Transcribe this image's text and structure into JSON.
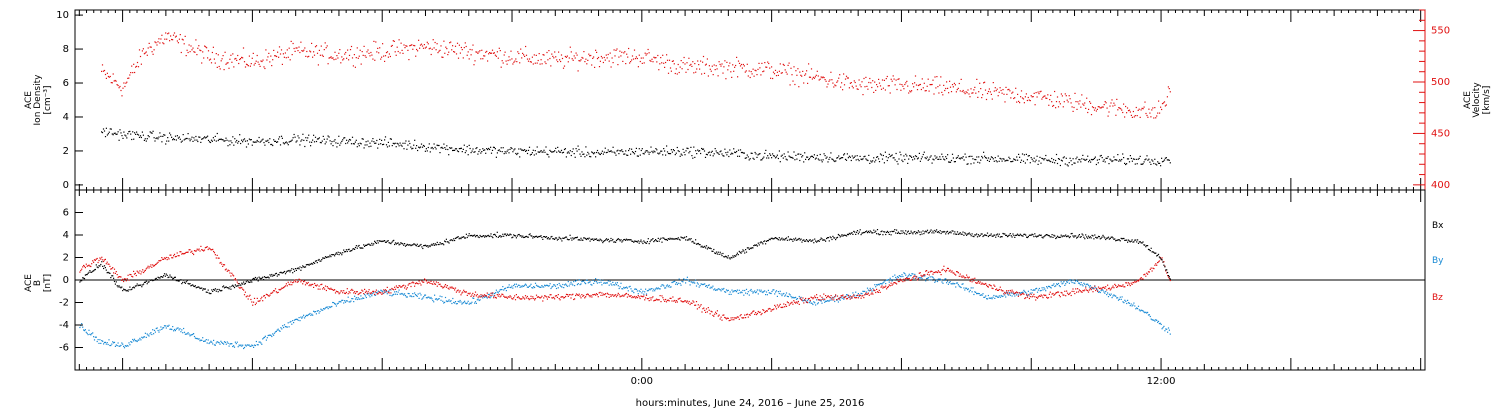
{
  "chart_data": [
    {
      "type": "scatter",
      "panel": "top",
      "y_left_label": [
        "ACE",
        "Ion Density",
        "[cm⁻³]"
      ],
      "y_right_label": [
        "ACE",
        "Velocity",
        "[km/s]"
      ],
      "y_left_ticks": [
        "0",
        "2",
        "4",
        "6",
        "8",
        "10"
      ],
      "y_right_ticks": [
        "400",
        "450",
        "500",
        "550"
      ],
      "ylim_left": [
        -0.3,
        10.3
      ],
      "ylim_right": [
        395,
        570
      ],
      "series": [
        {
          "axis": "left",
          "color": "#000000",
          "x": [
            -12.5,
            -12,
            -11,
            -10,
            -9,
            -8,
            -7,
            -6,
            -5,
            -4,
            -3,
            -2,
            -1,
            0,
            1,
            2,
            3,
            4,
            5,
            6,
            7,
            8,
            9,
            10,
            11,
            11.9,
            12.2
          ],
          "y": [
            3.2,
            3.0,
            2.8,
            2.7,
            2.6,
            2.7,
            2.6,
            2.5,
            2.3,
            2.1,
            2.0,
            2.0,
            1.9,
            2.0,
            2.0,
            1.9,
            1.7,
            1.7,
            1.6,
            1.6,
            1.6,
            1.6,
            1.5,
            1.5,
            1.5,
            1.5,
            1.6
          ]
        },
        {
          "axis": "right",
          "color": "#e01010",
          "x": [
            -12.5,
            -12,
            -11.5,
            -11,
            -10,
            -9,
            -8,
            -7,
            -6,
            -5,
            -4,
            -3,
            -2,
            -1,
            0,
            1,
            2,
            3,
            4,
            5,
            6,
            7,
            8,
            9,
            10,
            11,
            11.9,
            12.2
          ],
          "y": [
            510,
            495,
            530,
            545,
            525,
            520,
            530,
            527,
            530,
            535,
            530,
            525,
            522,
            525,
            525,
            515,
            515,
            512,
            505,
            497,
            497,
            495,
            490,
            487,
            480,
            475,
            470,
            490
          ]
        }
      ]
    },
    {
      "type": "scatter",
      "panel": "bottom",
      "y_label": [
        "ACE",
        "B",
        "[nT]"
      ],
      "y_ticks": [
        "-6",
        "-4",
        "-2",
        "0",
        "2",
        "4",
        "6"
      ],
      "ylim": [
        -8,
        8
      ],
      "x_ticks": [
        "0:00",
        "12:00"
      ],
      "xlabel": "hours:minutes, June 24, 2016 – June 25, 2016",
      "xlim": [
        -13.1,
        18.1
      ],
      "legend": [
        "Bx",
        "By",
        "Bz"
      ],
      "legend_placement": "right",
      "series": [
        {
          "name": "Bx",
          "color": "#000000",
          "x": [
            -13,
            -12.5,
            -12,
            -11,
            -10,
            -9,
            -8,
            -7,
            -6,
            -5,
            -4,
            -3,
            -2,
            -1,
            0,
            1,
            2,
            3,
            4,
            5,
            6,
            7,
            8,
            9,
            10,
            11,
            11.5,
            12,
            12.2
          ],
          "y": [
            0,
            1.5,
            -1,
            0.5,
            -1,
            0,
            1,
            2.5,
            3.5,
            3,
            4,
            4,
            3.8,
            3.6,
            3.5,
            3.8,
            2,
            3.8,
            3.5,
            4.3,
            4.3,
            4.3,
            4,
            4,
            4,
            3.7,
            3.5,
            2,
            0
          ]
        },
        {
          "name": "By",
          "color": "#1a8ad4",
          "x": [
            -13,
            -12.5,
            -12,
            -11,
            -10,
            -9,
            -8,
            -7,
            -6,
            -5,
            -4,
            -3,
            -2,
            -1,
            0,
            1,
            2,
            3,
            4,
            5,
            6,
            7,
            8,
            9,
            10,
            11,
            11.5,
            12,
            12.2
          ],
          "y": [
            -4,
            -5.5,
            -5.8,
            -4,
            -5.5,
            -5.8,
            -3.5,
            -2,
            -1,
            -1.5,
            -2,
            -0.5,
            -0.5,
            0,
            -1,
            0,
            -1,
            -1,
            -2,
            -1.2,
            0.5,
            0,
            -1.5,
            -1,
            0,
            -1.5,
            -2.5,
            -4,
            -4.5
          ]
        },
        {
          "name": "Bz",
          "color": "#e01010",
          "x": [
            -13,
            -12.5,
            -12,
            -11,
            -10,
            -9,
            -8,
            -7,
            -6,
            -5,
            -4,
            -3,
            -2,
            -1,
            0,
            1,
            2,
            3,
            4,
            5,
            6,
            7,
            8,
            9,
            10,
            11,
            11.5,
            12,
            12.2
          ],
          "y": [
            1,
            2,
            0,
            2,
            3,
            -2,
            0,
            -1,
            -1,
            0,
            -1.2,
            -1.5,
            -1.5,
            -1.2,
            -1.5,
            -1.8,
            -3.5,
            -2.5,
            -1.5,
            -1.5,
            0,
            1,
            -0.5,
            -1.5,
            -1,
            -0.5,
            0,
            2,
            0
          ]
        }
      ]
    }
  ]
}
